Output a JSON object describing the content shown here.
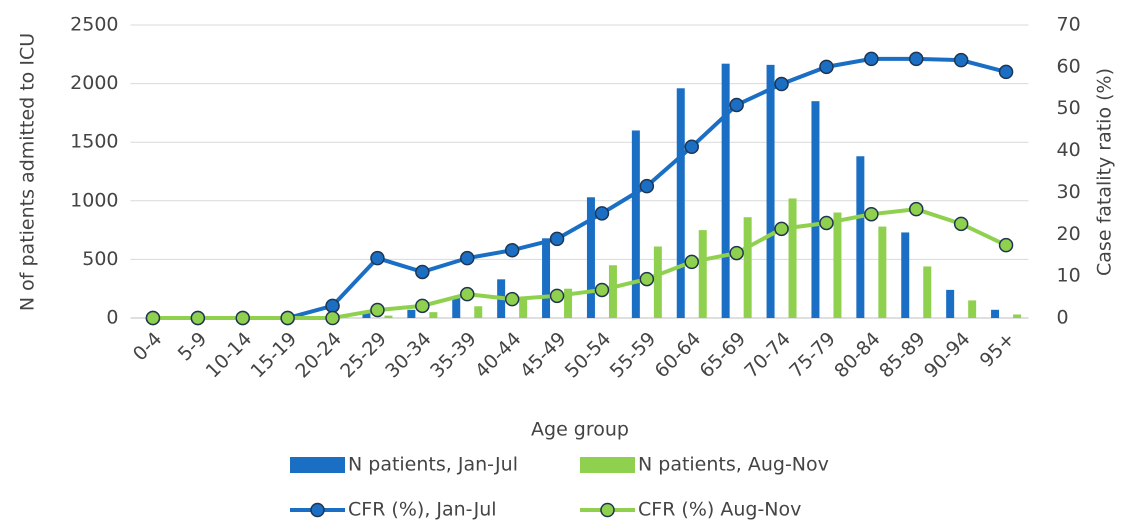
{
  "chart_data": {
    "type": "bar",
    "x_label": "Age group",
    "y_label": "N of patients admitted to ICU",
    "y2_label": "Case fatality ratio (%)",
    "categories": [
      "0-4",
      "5-9",
      "10-14",
      "15-19",
      "20-24",
      "25-29",
      "30-34",
      "35-39",
      "40-44",
      "45-49",
      "50-54",
      "55-59",
      "60-64",
      "65-69",
      "70-74",
      "75-79",
      "80-84",
      "85-89",
      "90-94",
      "95+"
    ],
    "ylim": [
      0,
      2500
    ],
    "yticks": [
      0,
      500,
      1000,
      1500,
      2000,
      2500
    ],
    "y2lim": [
      0,
      70
    ],
    "y2ticks": [
      0,
      10,
      20,
      30,
      40,
      50,
      60,
      70
    ],
    "grid": true,
    "legend": "bottom",
    "series": [
      {
        "name": "N patients, Jan-Jul",
        "type": "bar",
        "color": "#1a6fc4",
        "values": [
          0,
          0,
          0,
          0,
          10,
          50,
          70,
          180,
          330,
          680,
          1030,
          1600,
          1960,
          2170,
          2160,
          1850,
          1380,
          730,
          240,
          70
        ]
      },
      {
        "name": "N patients, Aug-Nov",
        "type": "bar",
        "color": "#8fd14f",
        "values": [
          0,
          0,
          0,
          0,
          0,
          20,
          50,
          100,
          180,
          250,
          450,
          610,
          750,
          860,
          1020,
          900,
          780,
          440,
          150,
          30
        ]
      },
      {
        "name": "CFR (%), Jan-Jul",
        "type": "line",
        "axis": "y2",
        "color": "#1a6fc4",
        "values": [
          0,
          0,
          0,
          0,
          2.9,
          14.3,
          11,
          14.3,
          16.2,
          18.9,
          25,
          31.5,
          40.9,
          50.9,
          55.9,
          60,
          61.9,
          61.9,
          61.6,
          58.8
        ]
      },
      {
        "name": "CFR (%) Aug-Nov",
        "type": "line",
        "axis": "y2",
        "color": "#8fd14f",
        "values": [
          0,
          0,
          0,
          0,
          0,
          1.9,
          2.9,
          5.7,
          4.5,
          5.3,
          6.7,
          9.3,
          13.4,
          15.5,
          21.3,
          22.7,
          24.8,
          26,
          22.5,
          17.4
        ]
      }
    ]
  }
}
